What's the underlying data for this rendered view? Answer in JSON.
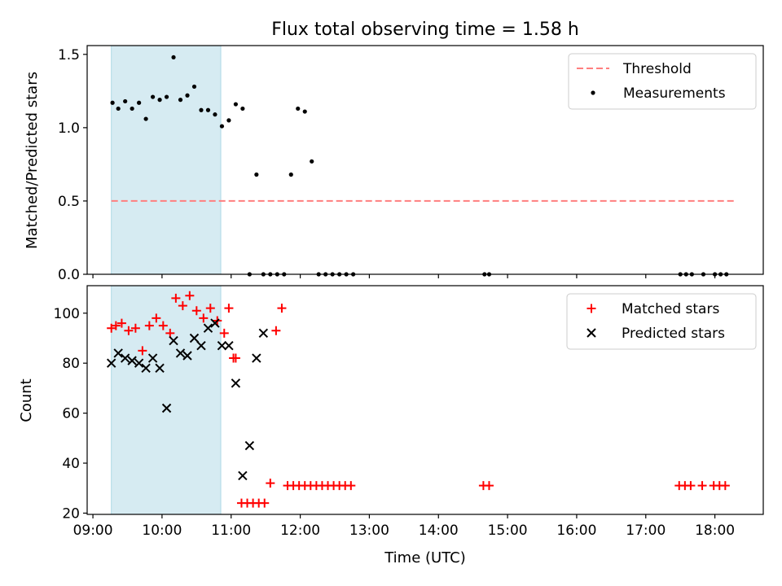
{
  "chart_data": [
    {
      "type": "scatter",
      "title": "Flux total observing time = 1.58 h",
      "xlabel": "",
      "ylabel": "Matched/Predicted stars",
      "xlim": [
        "08:55",
        "18:42"
      ],
      "ylim": [
        0,
        1.56
      ],
      "yticks": [
        "0.0",
        "0.5",
        "1.0",
        "1.5"
      ],
      "highlight_span": {
        "start": "09:16",
        "end": "10:51",
        "color": "#add8e6"
      },
      "legend_position": "top-right",
      "legend": [
        {
          "name": "Threshold",
          "style": "dashed-line",
          "color": "#ff7f7f"
        },
        {
          "name": "Measurements",
          "style": "dot",
          "color": "#000000"
        }
      ],
      "threshold": {
        "name": "Threshold",
        "value": 0.5,
        "x_start": "09:16",
        "x_end": "18:18",
        "color": "#ff7f7f"
      },
      "series": [
        {
          "name": "Measurements",
          "marker": "dot",
          "color": "#000000",
          "x": [
            "09:17",
            "09:22",
            "09:28",
            "09:34",
            "09:40",
            "09:46",
            "09:52",
            "09:58",
            "10:04",
            "10:10",
            "10:16",
            "10:22",
            "10:28",
            "10:34",
            "10:40",
            "10:46",
            "10:52",
            "10:58",
            "11:04",
            "11:10",
            "11:16",
            "11:22",
            "11:28",
            "11:34",
            "11:40",
            "11:46",
            "11:52",
            "11:58",
            "12:04",
            "12:10",
            "12:16",
            "12:22",
            "12:28",
            "12:34",
            "12:40",
            "12:46",
            "14:40",
            "14:44",
            "17:30",
            "17:35",
            "17:40",
            "17:50",
            "18:00",
            "18:05",
            "18:10"
          ],
          "y": [
            1.17,
            1.13,
            1.18,
            1.13,
            1.17,
            1.06,
            1.21,
            1.19,
            1.21,
            1.48,
            1.19,
            1.22,
            1.28,
            1.12,
            1.12,
            1.09,
            1.01,
            1.05,
            1.16,
            1.13,
            0,
            0.68,
            0,
            0,
            0,
            0,
            0.68,
            1.13,
            1.11,
            0.77,
            0,
            0,
            0,
            0,
            0,
            0,
            0,
            0,
            0,
            0,
            0,
            0,
            0,
            0,
            0
          ]
        }
      ]
    },
    {
      "type": "scatter",
      "title": "",
      "xlabel": "Time (UTC)",
      "ylabel": "Count",
      "xlim": [
        "08:55",
        "18:42"
      ],
      "ylim": [
        19.5,
        111
      ],
      "yticks": [
        "20",
        "40",
        "60",
        "80",
        "100"
      ],
      "xticks": [
        "09:00",
        "10:00",
        "11:00",
        "12:00",
        "13:00",
        "14:00",
        "15:00",
        "16:00",
        "17:00",
        "18:00"
      ],
      "highlight_span": {
        "start": "09:16",
        "end": "10:51",
        "color": "#add8e6"
      },
      "legend_position": "top-right",
      "legend": [
        {
          "name": "Matched stars",
          "style": "plus",
          "color": "#ff0000"
        },
        {
          "name": "Predicted stars",
          "style": "x",
          "color": "#000000"
        }
      ],
      "series": [
        {
          "name": "Matched stars",
          "marker": "plus",
          "color": "#ff0000",
          "x": [
            "09:16",
            "09:20",
            "09:25",
            "09:31",
            "09:37",
            "09:43",
            "09:49",
            "09:55",
            "10:01",
            "10:07",
            "10:12",
            "10:18",
            "10:24",
            "10:30",
            "10:36",
            "10:42",
            "10:48",
            "10:54",
            "10:58",
            "11:02",
            "11:04",
            "11:09",
            "11:14",
            "11:19",
            "11:24",
            "11:29",
            "11:34",
            "11:39",
            "11:44",
            "11:49",
            "11:54",
            "11:59",
            "12:04",
            "12:09",
            "12:14",
            "12:19",
            "12:24",
            "12:29",
            "12:34",
            "12:39",
            "12:44",
            "14:39",
            "14:44",
            "17:29",
            "17:34",
            "17:39",
            "17:49",
            "17:59",
            "18:04",
            "18:09"
          ],
          "y": [
            94,
            95,
            96,
            93,
            94,
            85,
            95,
            98,
            95,
            92,
            106,
            103,
            107,
            101,
            98,
            102,
            97,
            92,
            102,
            82,
            82,
            24,
            24,
            24,
            24,
            24,
            32,
            93,
            102,
            31,
            31,
            31,
            31,
            31,
            31,
            31,
            31,
            31,
            31,
            31,
            31,
            31,
            31,
            31,
            31,
            31,
            31,
            31,
            31,
            31
          ]
        },
        {
          "name": "Predicted stars",
          "marker": "x",
          "color": "#000000",
          "x": [
            "09:16",
            "09:22",
            "09:28",
            "09:34",
            "09:40",
            "09:46",
            "09:52",
            "09:58",
            "10:04",
            "10:10",
            "10:16",
            "10:22",
            "10:28",
            "10:34",
            "10:40",
            "10:46",
            "10:52",
            "10:58",
            "11:04",
            "11:10",
            "11:16",
            "11:22",
            "11:28"
          ],
          "y": [
            80,
            84,
            82,
            81,
            80,
            78,
            82,
            78,
            62,
            89,
            84,
            83,
            90,
            87,
            94,
            96,
            87,
            87,
            72,
            35,
            47,
            82,
            92
          ]
        }
      ]
    }
  ]
}
